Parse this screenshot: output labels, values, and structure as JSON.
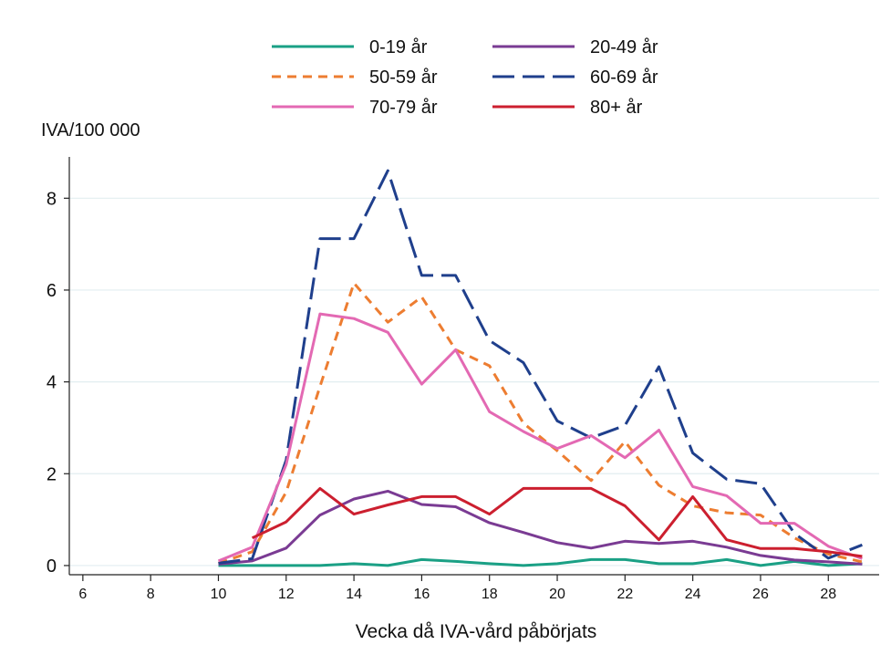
{
  "chart_data": {
    "type": "line",
    "title": "",
    "ylabel": "IVA/100 000",
    "xlabel": "Vecka då IVA-vård påbörjats",
    "xlim": [
      5.6,
      29.5
    ],
    "ylim": [
      -0.2,
      8.9
    ],
    "xticks": [
      6,
      8,
      10,
      12,
      14,
      16,
      18,
      20,
      22,
      24,
      26,
      28
    ],
    "yticks": [
      0,
      2,
      4,
      6,
      8
    ],
    "grid": "horizontal",
    "legend_position": "top",
    "x": [
      10,
      11,
      12,
      13,
      14,
      15,
      16,
      17,
      18,
      19,
      20,
      21,
      22,
      23,
      24,
      25,
      26,
      27,
      28,
      29
    ],
    "series": [
      {
        "name": "0-19 år",
        "color": "#1aa085",
        "dash": "solid",
        "values": [
          0,
          0,
          0,
          0,
          0.04,
          0,
          0.13,
          0.09,
          0.04,
          0,
          0.04,
          0.13,
          0.13,
          0.04,
          0.04,
          0.13,
          0,
          0.09,
          0,
          0.04
        ]
      },
      {
        "name": "20-49 år",
        "color": "#7a3b93",
        "dash": "solid",
        "values": [
          0.03,
          0.1,
          0.38,
          1.1,
          1.45,
          1.62,
          1.33,
          1.28,
          0.93,
          0.72,
          0.5,
          0.38,
          0.53,
          0.48,
          0.53,
          0.4,
          0.22,
          0.12,
          0.08,
          0.03
        ]
      },
      {
        "name": "50-59 år",
        "color": "#ed7d31",
        "dash": "short",
        "values": [
          0.05,
          0.3,
          1.6,
          3.9,
          6.15,
          5.3,
          5.85,
          4.7,
          4.35,
          3.1,
          2.5,
          1.85,
          2.7,
          1.75,
          1.3,
          1.15,
          1.1,
          0.6,
          0.25,
          0.08
        ]
      },
      {
        "name": "60-69 år",
        "color": "#1f3f8c",
        "dash": "long",
        "values": [
          0.05,
          0.15,
          2.3,
          7.12,
          7.12,
          8.6,
          6.32,
          6.32,
          4.9,
          4.42,
          3.15,
          2.78,
          3.05,
          4.33,
          2.45,
          1.88,
          1.78,
          0.7,
          0.16,
          0.45
        ]
      },
      {
        "name": "70-79 år",
        "color": "#e369b3",
        "dash": "solid",
        "values": [
          0.1,
          0.4,
          2.2,
          5.48,
          5.38,
          5.08,
          3.95,
          4.7,
          3.35,
          2.92,
          2.55,
          2.83,
          2.35,
          2.95,
          1.72,
          1.52,
          0.92,
          0.92,
          0.42,
          0.15
        ]
      },
      {
        "name": "80+ år",
        "color": "#cc1f2f",
        "dash": "solid",
        "values": [
          null,
          0.6,
          0.95,
          1.68,
          1.12,
          1.32,
          1.5,
          1.5,
          1.12,
          1.68,
          1.68,
          1.68,
          1.3,
          0.56,
          1.5,
          0.56,
          0.37,
          0.37,
          0.3,
          0.2
        ]
      }
    ]
  }
}
